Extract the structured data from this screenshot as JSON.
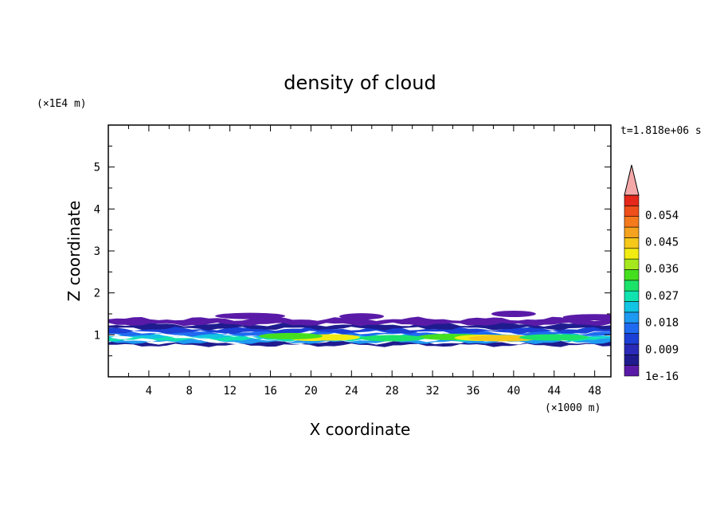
{
  "chart_data": {
    "type": "heatmap",
    "title": "density of cloud",
    "xlabel": "X coordinate",
    "ylabel": "Z coordinate",
    "x_unit": "(×1000 m)",
    "y_unit": "(×1E4 m)",
    "time_label": "t=1.818e+06 s",
    "xlim": [
      0,
      49.6
    ],
    "ylim": [
      0,
      6
    ],
    "x_ticks": [
      4,
      8,
      12,
      16,
      20,
      24,
      28,
      32,
      36,
      40,
      44,
      48
    ],
    "x_tick_labels": [
      "4",
      "8",
      "12",
      "16",
      "20",
      "24",
      "28",
      "32",
      "36",
      "40",
      "44",
      "48"
    ],
    "y_ticks": [
      1,
      2,
      3,
      4,
      5
    ],
    "y_tick_labels": [
      "1",
      "2",
      "3",
      "4",
      "5"
    ],
    "colorbar": {
      "labels": [
        "1e-16",
        "0.009",
        "0.018",
        "0.027",
        "0.036",
        "0.045",
        "0.054"
      ],
      "colors": [
        "#5a1aa8",
        "#1f1b8f",
        "#2a2ab8",
        "#1c3fd6",
        "#1f6af0",
        "#1e9af2",
        "#12c4e4",
        "#10e3b0",
        "#1be36a",
        "#44e020",
        "#a6e81e",
        "#f2ec12",
        "#f6c81a",
        "#f5a21e",
        "#f57a1e",
        "#ef4f1a",
        "#e5281a"
      ],
      "extend_color": "#f5a8a8"
    },
    "bands": [
      {
        "z_bottom": 0.75,
        "z_top": 0.82,
        "level": 1
      },
      {
        "z_bottom": 0.82,
        "z_top": 0.88,
        "level": 5
      },
      {
        "z_bottom": 0.88,
        "z_top": 0.94,
        "level": 7
      },
      {
        "z_bottom": 0.94,
        "z_top": 1.0,
        "level": 6
      },
      {
        "z_bottom": 1.0,
        "z_top": 1.06,
        "level": 4
      },
      {
        "z_bottom": 1.06,
        "z_top": 1.15,
        "level": 3
      },
      {
        "z_bottom": 1.15,
        "z_top": 1.25,
        "level": 1
      },
      {
        "z_bottom": 1.25,
        "z_top": 1.38,
        "level": 0
      }
    ],
    "patches": [
      {
        "x": 20,
        "z": 0.93,
        "level": 11
      },
      {
        "x": 22,
        "z": 0.94,
        "level": 11
      },
      {
        "x": 34,
        "z": 0.95,
        "level": 9
      },
      {
        "x": 37,
        "z": 0.93,
        "level": 11
      },
      {
        "x": 39,
        "z": 0.92,
        "level": 12
      },
      {
        "x": 44,
        "z": 0.94,
        "level": 8
      },
      {
        "x": 18,
        "z": 0.97,
        "level": 9
      },
      {
        "x": 28,
        "z": 0.92,
        "level": 8
      },
      {
        "x": 14,
        "z": 1.45,
        "level": 0
      },
      {
        "x": 25,
        "z": 1.44,
        "level": 0
      },
      {
        "x": 40,
        "z": 1.5,
        "level": 0
      },
      {
        "x": 48,
        "z": 1.42,
        "level": 0
      }
    ]
  }
}
